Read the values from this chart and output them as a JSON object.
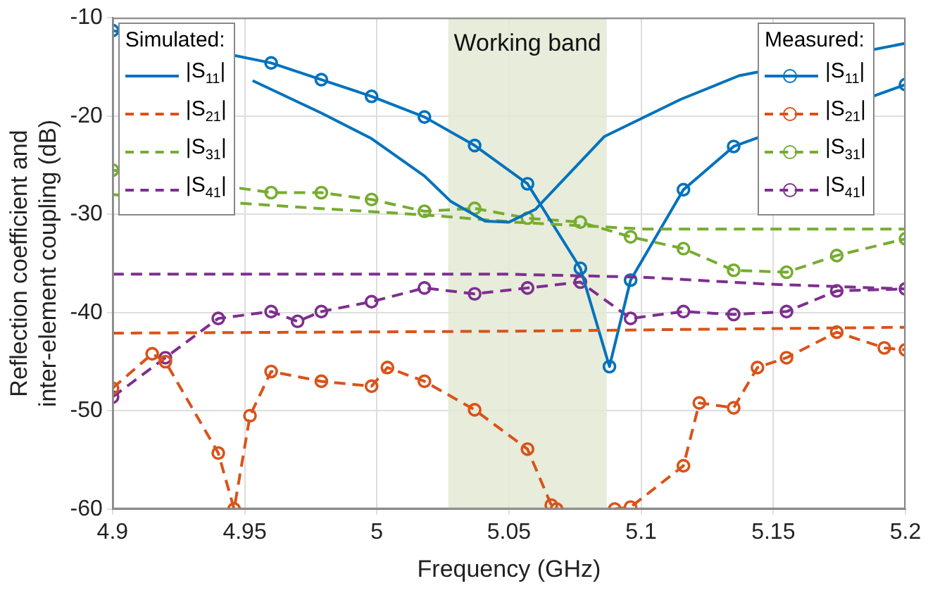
{
  "chart_data": {
    "type": "line",
    "xlabel": "Frequency (GHz)",
    "ylabel": "Reflection coefficient and inter-element coupling (dB)",
    "xlim": [
      4.9,
      5.2
    ],
    "xticks": [
      4.9,
      4.95,
      5,
      5.05,
      5.1,
      5.15,
      5.2
    ],
    "ylim": [
      -60,
      -10
    ],
    "yticks": [
      -60,
      -50,
      -40,
      -30,
      -20,
      -10
    ],
    "grid": true,
    "legend": "top",
    "legend_title": [
      "Simulated:",
      "Measured:"
    ],
    "bands": [
      {
        "axis": "x",
        "from": 5.027,
        "to": 5.087,
        "label": "Working band",
        "color": "#e3e9d5"
      }
    ],
    "series": [
      {
        "name": "|S$_{11}$|",
        "color": "#0072bd",
        "marker": "none",
        "line_style": "solid",
        "x": [
          4.953,
          4.979,
          4.998,
          5.018,
          5.028,
          5.041,
          5.05,
          5.06,
          5.086,
          5.115,
          5.137,
          5.2
        ],
        "values": [
          -16.4,
          -19.7,
          -22.3,
          -26.1,
          -28.7,
          -30.7,
          -30.8,
          -29.5,
          -22.1,
          -18.3,
          -15.9,
          -12.6
        ]
      },
      {
        "name": "|S$_{21}$|",
        "color": "#d95319",
        "marker": "none",
        "line_style": "dashed",
        "x": [
          4.9,
          5.05,
          5.2
        ],
        "values": [
          -42.1,
          -41.9,
          -41.5
        ]
      },
      {
        "name": "|S$_{31}$|",
        "color": "#77ac30",
        "marker": "none",
        "line_style": "dashed",
        "x": [
          4.9,
          4.966,
          5.02,
          5.052,
          5.101,
          5.2
        ],
        "values": [
          -28.0,
          -29.2,
          -30.1,
          -30.8,
          -31.5,
          -31.5
        ]
      },
      {
        "name": "|S$_{41}$|",
        "color": "#7e2f8e",
        "marker": "none",
        "line_style": "dashed",
        "x": [
          4.9,
          5.05,
          5.1,
          5.147,
          5.2
        ],
        "values": [
          -36.1,
          -36.1,
          -36.4,
          -37.1,
          -37.6
        ]
      },
      {
        "name": "|S$_{11}$|",
        "color": "#0072bd",
        "marker": "circle",
        "line_style": "solid",
        "x": [
          4.9,
          4.96,
          4.979,
          4.998,
          5.018,
          5.037,
          5.057,
          5.077,
          5.088,
          5.096,
          5.116,
          5.135,
          5.2
        ],
        "values": [
          -11.3,
          -14.6,
          -16.3,
          -18.0,
          -20.1,
          -23.0,
          -26.9,
          -35.5,
          -45.5,
          -36.7,
          -27.5,
          -23.1,
          -16.8
        ]
      },
      {
        "name": "|S$_{21}$|",
        "color": "#d95319",
        "marker": "circle",
        "line_style": "dashed",
        "x": [
          4.9,
          4.915,
          4.92,
          4.94,
          4.946,
          4.952,
          4.96,
          4.979,
          4.998,
          5.004,
          5.018,
          5.037,
          5.057,
          5.066,
          5.068,
          5.08,
          5.09,
          5.096,
          5.116,
          5.122,
          5.135,
          5.144,
          5.155,
          5.174,
          5.192,
          5.2
        ],
        "values": [
          -47.7,
          -44.2,
          -45.0,
          -54.3,
          -60,
          -50.5,
          -46.0,
          -47.0,
          -47.5,
          -45.6,
          -47.0,
          -49.9,
          -53.9,
          -59.6,
          -60,
          null,
          -60,
          -59.8,
          -55.6,
          -49.2,
          -49.7,
          -45.6,
          -44.6,
          -42.0,
          -43.6,
          -43.8
        ]
      },
      {
        "name": "|S$_{31}$|",
        "color": "#77ac30",
        "marker": "circle",
        "line_style": "dashed",
        "x": [
          4.9,
          4.96,
          4.979,
          4.998,
          5.018,
          5.037,
          5.057,
          5.077,
          5.096,
          5.116,
          5.135,
          5.155,
          5.174,
          5.2
        ],
        "values": [
          -25.5,
          -27.8,
          -27.8,
          -28.5,
          -29.7,
          -29.4,
          -30.4,
          -30.8,
          -32.3,
          -33.5,
          -35.7,
          -35.9,
          -34.2,
          -32.5
        ]
      },
      {
        "name": "|S$_{41}$|",
        "color": "#7e2f8e",
        "marker": "circle",
        "line_style": "dashed",
        "x": [
          4.9,
          4.92,
          4.94,
          4.96,
          4.97,
          4.979,
          4.998,
          5.018,
          5.037,
          5.057,
          5.077,
          5.096,
          5.116,
          5.135,
          5.155,
          5.174,
          5.2
        ],
        "values": [
          -48.6,
          -44.6,
          -40.6,
          -39.9,
          -40.9,
          -39.9,
          -38.9,
          -37.5,
          -38.1,
          -37.5,
          -36.9,
          -40.6,
          -39.9,
          -40.2,
          -39.9,
          -37.8,
          -37.6
        ]
      }
    ]
  }
}
